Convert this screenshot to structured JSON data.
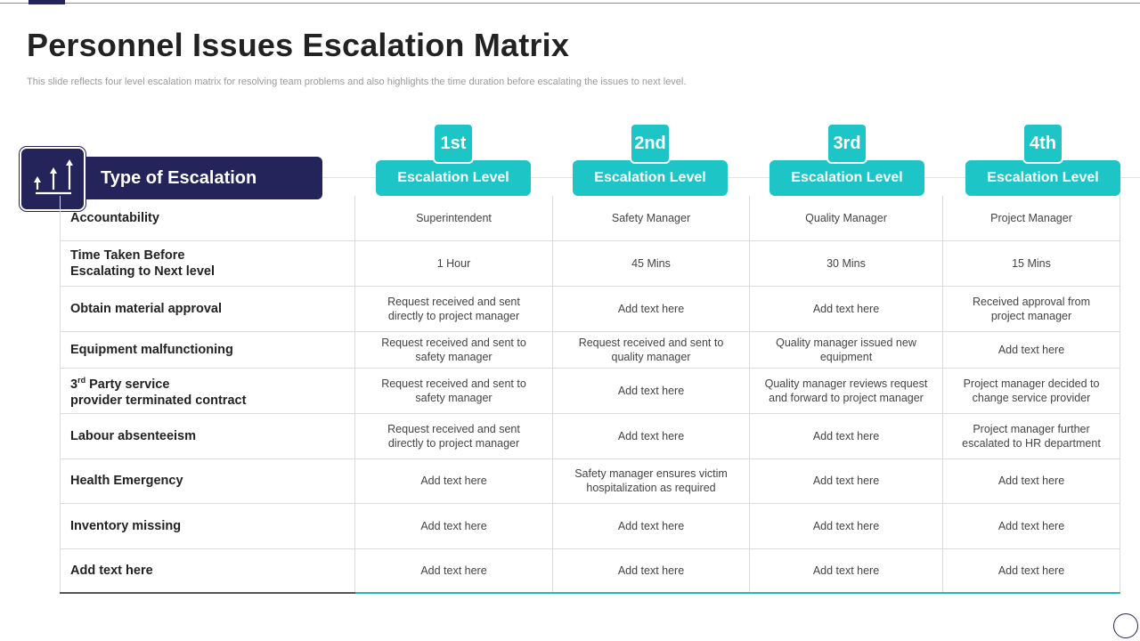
{
  "title": "Personnel Issues Escalation Matrix",
  "subtitle": "This slide reflects four level escalation matrix for resolving team problems and also highlights the time duration before escalating the issues to next level.",
  "type_header": "Type of Escalation",
  "header_icon": "ascending-arrows-icon",
  "colors": {
    "navy": "#24235a",
    "teal": "#1ec5c6"
  },
  "levels": [
    {
      "badge": "1st",
      "label": "Escalation Level"
    },
    {
      "badge": "2nd",
      "label": "Escalation Level"
    },
    {
      "badge": "3rd",
      "label": "Escalation Level"
    },
    {
      "badge": "4th",
      "label": "Escalation Level"
    }
  ],
  "rows": [
    {
      "type": [
        "Accountability"
      ],
      "cells": [
        [
          "Superintendent"
        ],
        [
          "Safety Manager"
        ],
        [
          "Quality Manager"
        ],
        [
          "Project Manager"
        ]
      ]
    },
    {
      "type": [
        "Time Taken Before",
        "Escalating to Next level"
      ],
      "cells": [
        [
          "1 Hour"
        ],
        [
          "45 Mins"
        ],
        [
          "30 Mins"
        ],
        [
          "15 Mins"
        ]
      ]
    },
    {
      "type": [
        "Obtain material approval"
      ],
      "cells": [
        [
          "Request received  and sent",
          "directly to project manager"
        ],
        [
          "Add text here"
        ],
        [
          "Add text here"
        ],
        [
          "Received approval from",
          "project manager"
        ]
      ]
    },
    {
      "type": [
        "Equipment malfunctioning"
      ],
      "cells": [
        [
          "Request received  and sent to",
          "safety manager"
        ],
        [
          "Request received  and sent to",
          "quality manager"
        ],
        [
          "Quality manager issued new",
          "equipment"
        ],
        [
          "Add text here"
        ]
      ]
    },
    {
      "type_special": {
        "prefix": "3",
        "sup": "rd",
        "rest": " Party service",
        "line2": "provider terminated contract"
      },
      "cells": [
        [
          "Request received  and sent to",
          "safety manager"
        ],
        [
          "Add text here"
        ],
        [
          "Quality manager reviews request",
          "and forward to project manager"
        ],
        [
          "Project manager decided to",
          "change service provider"
        ]
      ]
    },
    {
      "type": [
        "Labour absenteeism"
      ],
      "cells": [
        [
          "Request received  and sent",
          "directly to project manager"
        ],
        [
          "Add text here"
        ],
        [
          "Add text here"
        ],
        [
          "Project manager further",
          "escalated to HR department"
        ]
      ]
    },
    {
      "type": [
        "Health Emergency"
      ],
      "cells": [
        [
          "Add text here"
        ],
        [
          "Safety manager ensures victim",
          "hospitalization as required"
        ],
        [
          "Add text here"
        ],
        [
          "Add text here"
        ]
      ]
    },
    {
      "type": [
        "Inventory missing"
      ],
      "cells": [
        [
          "Add text here"
        ],
        [
          "Add text here"
        ],
        [
          "Add text here"
        ],
        [
          "Add text here"
        ]
      ]
    },
    {
      "type": [
        "Add  text here"
      ],
      "cells": [
        [
          "Add text here"
        ],
        [
          "Add text here"
        ],
        [
          "Add text here"
        ],
        [
          "Add text here"
        ]
      ]
    }
  ]
}
